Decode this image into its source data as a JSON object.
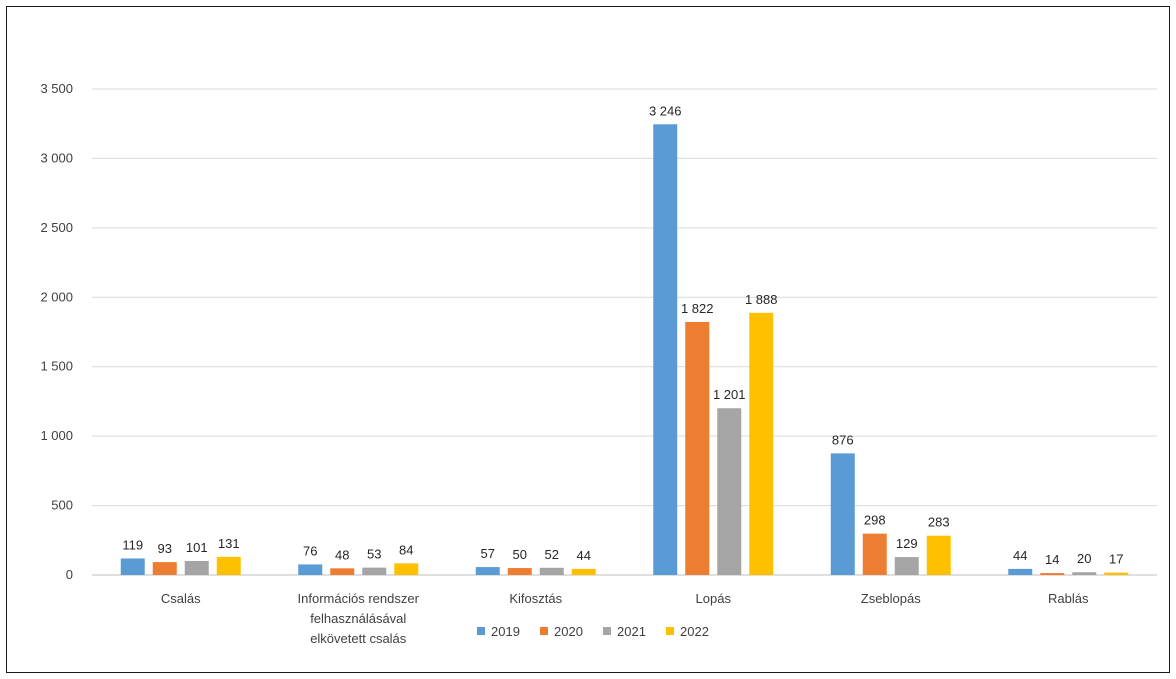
{
  "chart_data": {
    "type": "bar",
    "categories": [
      [
        "Csalás"
      ],
      [
        "Információs rendszer",
        "felhasználásával",
        "elkövetett csalás"
      ],
      [
        "Kifosztás"
      ],
      [
        "Lopás"
      ],
      [
        "Zseblopás"
      ],
      [
        "Rablás"
      ]
    ],
    "series": [
      {
        "name": "2019",
        "color": "#5b9bd5",
        "values": [
          119,
          76,
          57,
          3246,
          876,
          44
        ]
      },
      {
        "name": "2020",
        "color": "#ed7d31",
        "values": [
          93,
          48,
          50,
          1822,
          298,
          14
        ]
      },
      {
        "name": "2021",
        "color": "#a5a5a5",
        "values": [
          101,
          53,
          52,
          1201,
          129,
          20
        ]
      },
      {
        "name": "2022",
        "color": "#ffc000",
        "values": [
          131,
          84,
          44,
          1888,
          283,
          17
        ]
      }
    ],
    "value_labels": [
      [
        "119",
        "76",
        "57",
        "3 246",
        "876",
        "44"
      ],
      [
        "93",
        "48",
        "50",
        "1 822",
        "298",
        "14"
      ],
      [
        "101",
        "53",
        "52",
        "1 201",
        "129",
        "20"
      ],
      [
        "131",
        "84",
        "44",
        "1 888",
        "283",
        "17"
      ]
    ],
    "y_ticks": [
      0,
      500,
      1000,
      1500,
      2000,
      2500,
      3000,
      3500
    ],
    "y_tick_labels": [
      "0",
      "500",
      "1 000",
      "1 500",
      "2 000",
      "2 500",
      "3 000",
      "3 500"
    ],
    "ylim": [
      0,
      3500
    ],
    "grid": true,
    "legend_position": "bottom"
  }
}
